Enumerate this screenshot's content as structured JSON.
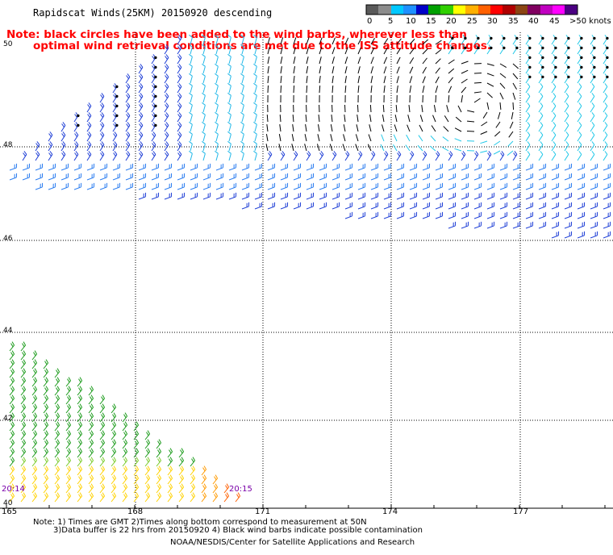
{
  "title": "Rapidscat Winds(25KM) 20150920 descending",
  "note_line1": "Note: black circles have been added to the wind barbs, wherever less than",
  "note_line2": "optimal wind retrieval conditions are met due to the ISS attitude changes.",
  "legend": {
    "labels": [
      "0",
      "5",
      "10",
      "15",
      "20",
      "25",
      "30",
      "35",
      "40",
      "45",
      ">50 knots"
    ],
    "colors": [
      "#5a5a5a",
      "#8c8c8c",
      "#00c8ff",
      "#1e90ff",
      "#0000c8",
      "#00a000",
      "#30d000",
      "#ffff00",
      "#ffb000",
      "#ff6000",
      "#ff0000",
      "#b00000",
      "#8b4513",
      "#800060",
      "#c000c0",
      "#ff00ff",
      "#4b0082"
    ]
  },
  "map": {
    "latitude_labels": [
      "50",
      "48",
      "46",
      "44",
      "42",
      "40"
    ],
    "longitude_labels": [
      "165",
      "168",
      "171",
      "174",
      "177"
    ],
    "time_labels": [
      "20:14",
      "20:15"
    ],
    "bounds": {
      "lon_min": 165,
      "lon_max": 179.5,
      "lat_min": 40,
      "lat_max": 50
    }
  },
  "footer": {
    "line1": "Note: 1) Times are GMT 2)Times along bottom correspond to measurement at 50N",
    "line2": "3)Data buffer is 22 hrs from 20150920 4) Black wind barbs indicate possible contamination",
    "credit": "NOAA/NESDIS/Center for Satellite Applications and Research"
  }
}
